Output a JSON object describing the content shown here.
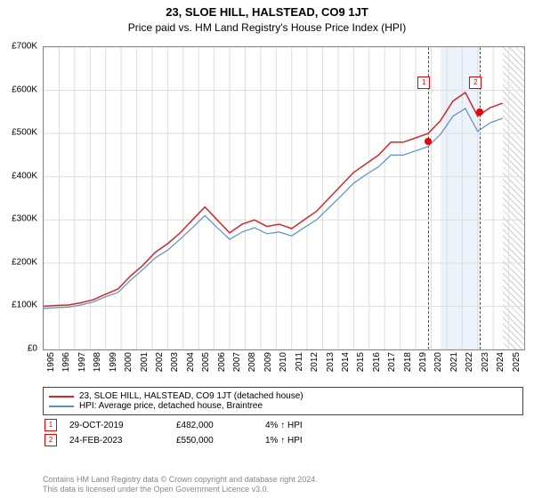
{
  "title": "23, SLOE HILL, HALSTEAD, CO9 1JT",
  "subtitle": "Price paid vs. HM Land Registry's House Price Index (HPI)",
  "chart": {
    "type": "line",
    "background": "#ffffff",
    "grid_color": "#dddddd",
    "ylim": [
      0,
      700000
    ],
    "ytick_step": 100000,
    "yticks": [
      "£0",
      "£100K",
      "£200K",
      "£300K",
      "£400K",
      "£500K",
      "£600K",
      "£700K"
    ],
    "xrange": [
      1995,
      2026
    ],
    "xticks": [
      1995,
      1996,
      1997,
      1998,
      1999,
      2000,
      2001,
      2002,
      2003,
      2004,
      2005,
      2006,
      2007,
      2008,
      2009,
      2010,
      2011,
      2012,
      2013,
      2014,
      2015,
      2016,
      2017,
      2018,
      2019,
      2020,
      2021,
      2022,
      2023,
      2024,
      2025
    ],
    "series": [
      {
        "name": "price_paid",
        "label": "23, SLOE HILL, HALSTEAD, CO9 1JT (detached house)",
        "color": "#d62728",
        "width": 1.5,
        "y": [
          100,
          102,
          103,
          108,
          115,
          128,
          140,
          170,
          195,
          225,
          245,
          270,
          300,
          330,
          300,
          270,
          290,
          300,
          285,
          290,
          280,
          300,
          320,
          350,
          380,
          410,
          430,
          450,
          480,
          480,
          490,
          500,
          530,
          575,
          595,
          540,
          560,
          570
        ]
      },
      {
        "name": "hpi",
        "label": "HPI: Average price, detached house, Braintree",
        "color": "#5b8fc6",
        "width": 1.2,
        "y": [
          95,
          97,
          98,
          103,
          110,
          122,
          132,
          160,
          185,
          212,
          230,
          255,
          282,
          310,
          282,
          255,
          272,
          282,
          268,
          272,
          263,
          282,
          300,
          328,
          356,
          385,
          405,
          423,
          450,
          450,
          460,
          470,
          498,
          540,
          558,
          505,
          525,
          535
        ]
      }
    ],
    "xvals_series": [
      1995,
      1995.8,
      1996.6,
      1997.4,
      1998.2,
      1999,
      1999.8,
      2000.6,
      2001.4,
      2002.2,
      2003,
      2003.8,
      2004.6,
      2005.4,
      2006.2,
      2007,
      2007.8,
      2008.6,
      2009.4,
      2010.2,
      2011,
      2011.8,
      2012.6,
      2013.4,
      2014.2,
      2015,
      2015.8,
      2016.6,
      2017.4,
      2018.2,
      2019,
      2019.8,
      2020.6,
      2021.4,
      2022.2,
      2023,
      2023.8,
      2024.6
    ],
    "markers": [
      {
        "num": "1",
        "year": 2019.82,
        "box_y": 620000,
        "dot_y": 482000
      },
      {
        "num": "2",
        "year": 2023.15,
        "box_y": 620000,
        "dot_y": 550000
      }
    ],
    "band": {
      "start": 2020.6,
      "end": 2023.15,
      "color": "#dbe8f5"
    },
    "hatch": {
      "start": 2024.6,
      "end": 2026
    }
  },
  "legend": {
    "rows": [
      {
        "color": "#d62728",
        "label": "23, SLOE HILL, HALSTEAD, CO9 1JT (detached house)"
      },
      {
        "color": "#5b8fc6",
        "label": "HPI: Average price, detached house, Braintree"
      }
    ]
  },
  "sales": [
    {
      "num": "1",
      "date": "29-OCT-2019",
      "price": "£482,000",
      "pct": "4% ↑ HPI"
    },
    {
      "num": "2",
      "date": "24-FEB-2023",
      "price": "£550,000",
      "pct": "1% ↑ HPI"
    }
  ],
  "footer1": "Contains HM Land Registry data © Crown copyright and database right 2024.",
  "footer2": "This data is licensed under the Open Government Licence v3.0."
}
